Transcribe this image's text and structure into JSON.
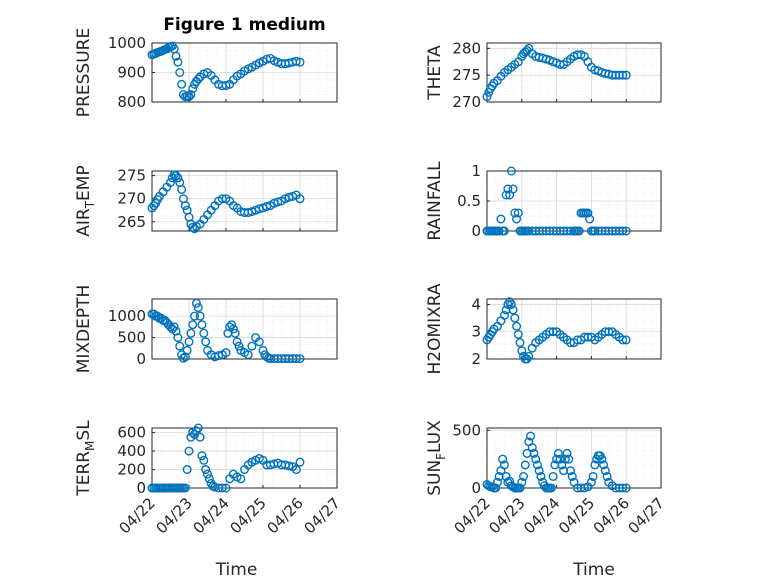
{
  "colors": {
    "marker": "#0072BD",
    "axis": "#262626",
    "grid": "#d9d9d9"
  },
  "title": "Figure 1 medium",
  "chart_data": [
    {
      "type": "scatter",
      "ylabel": "PRESSURE",
      "yticks": [
        800,
        900,
        1000
      ],
      "ylim": [
        800,
        1000
      ],
      "xlim": [
        0,
        5
      ],
      "x": [
        0,
        0.05,
        0.1,
        0.15,
        0.2,
        0.25,
        0.3,
        0.35,
        0.4,
        0.45,
        0.5,
        0.55,
        0.6,
        0.65,
        0.7,
        0.75,
        0.8,
        0.85,
        0.9,
        0.95,
        1.0,
        1.05,
        1.1,
        1.15,
        1.2,
        1.25,
        1.3,
        1.4,
        1.5,
        1.6,
        1.7,
        1.8,
        1.9,
        2.0,
        2.1,
        2.2,
        2.3,
        2.4,
        2.5,
        2.6,
        2.7,
        2.8,
        2.9,
        3.0,
        3.1,
        3.2,
        3.3,
        3.4,
        3.5,
        3.6,
        3.7,
        3.8,
        3.9,
        4.0
      ],
      "y": [
        960,
        962,
        965,
        968,
        970,
        972,
        975,
        978,
        980,
        985,
        988,
        990,
        980,
        955,
        935,
        900,
        860,
        825,
        818,
        820,
        818,
        825,
        845,
        860,
        870,
        878,
        885,
        895,
        900,
        890,
        875,
        860,
        855,
        856,
        860,
        875,
        888,
        895,
        905,
        912,
        918,
        925,
        932,
        938,
        945,
        948,
        940,
        935,
        930,
        930,
        932,
        935,
        938,
        935
      ]
    },
    {
      "type": "scatter",
      "ylabel": "THETA",
      "yticks": [
        270,
        275,
        280
      ],
      "ylim": [
        270,
        281
      ],
      "xlim": [
        0,
        5
      ],
      "x": [
        0,
        0.05,
        0.1,
        0.15,
        0.2,
        0.3,
        0.4,
        0.5,
        0.6,
        0.7,
        0.8,
        0.9,
        1.0,
        1.05,
        1.1,
        1.15,
        1.2,
        1.3,
        1.4,
        1.5,
        1.6,
        1.7,
        1.8,
        1.9,
        2.0,
        2.1,
        2.2,
        2.3,
        2.4,
        2.5,
        2.6,
        2.7,
        2.8,
        2.9,
        3.0,
        3.1,
        3.2,
        3.3,
        3.4,
        3.5,
        3.6,
        3.7,
        3.8,
        3.9,
        4.0
      ],
      "y": [
        271,
        271.8,
        272.5,
        273,
        273.5,
        274,
        274.8,
        275.5,
        276,
        276.5,
        277,
        277.5,
        278.5,
        279,
        279.3,
        279.6,
        280,
        279,
        278.5,
        278.3,
        278.2,
        278,
        277.8,
        277.5,
        277.3,
        277,
        277,
        277.5,
        278,
        278.5,
        278.8,
        278.8,
        278.5,
        277.5,
        276.5,
        276,
        275.8,
        275.5,
        275.3,
        275.2,
        275,
        275,
        275,
        275,
        275
      ]
    },
    {
      "type": "scatter",
      "ylabel": "AIR_TEMP",
      "yticks": [
        265,
        270,
        275
      ],
      "ylim": [
        263,
        276
      ],
      "xlim": [
        0,
        5
      ],
      "x": [
        0,
        0.05,
        0.1,
        0.15,
        0.2,
        0.3,
        0.4,
        0.5,
        0.55,
        0.6,
        0.65,
        0.7,
        0.75,
        0.8,
        0.85,
        0.9,
        0.95,
        1.0,
        1.05,
        1.1,
        1.15,
        1.2,
        1.3,
        1.4,
        1.5,
        1.6,
        1.7,
        1.8,
        1.9,
        2.0,
        2.1,
        2.2,
        2.3,
        2.4,
        2.5,
        2.6,
        2.7,
        2.8,
        2.9,
        3.0,
        3.1,
        3.2,
        3.3,
        3.4,
        3.5,
        3.6,
        3.7,
        3.8,
        3.9,
        4.0
      ],
      "y": [
        268,
        268.5,
        269,
        269.8,
        270.5,
        271.5,
        272.5,
        273.5,
        274.5,
        275.2,
        275,
        274.5,
        273.5,
        272,
        270,
        268.5,
        267.5,
        266,
        264.5,
        263.8,
        263.5,
        264,
        264.5,
        265.5,
        266.5,
        267.5,
        268.5,
        269.5,
        270,
        270,
        269.5,
        268.5,
        268,
        267.2,
        267,
        267,
        267.2,
        267.5,
        267.8,
        268,
        268.3,
        268.5,
        269,
        269.3,
        269.5,
        270,
        270.3,
        270.5,
        270.8,
        270
      ]
    },
    {
      "type": "scatter",
      "ylabel": "RAINFALL",
      "yticks": [
        0,
        0.5,
        1
      ],
      "ylim": [
        0,
        1
      ],
      "xlim": [
        0,
        5
      ],
      "x": [
        0,
        0.05,
        0.1,
        0.15,
        0.2,
        0.25,
        0.3,
        0.35,
        0.4,
        0.45,
        0.5,
        0.55,
        0.6,
        0.65,
        0.7,
        0.75,
        0.8,
        0.85,
        0.9,
        0.95,
        1.0,
        1.05,
        1.1,
        1.15,
        1.2,
        1.3,
        1.4,
        1.5,
        1.6,
        1.7,
        1.8,
        1.9,
        2.0,
        2.1,
        2.2,
        2.3,
        2.4,
        2.5,
        2.55,
        2.6,
        2.65,
        2.7,
        2.75,
        2.8,
        2.85,
        2.9,
        2.95,
        3.0,
        3.05,
        3.1,
        3.2,
        3.3,
        3.4,
        3.5,
        3.6,
        3.7,
        3.8,
        3.9,
        4.0
      ],
      "y": [
        0,
        0,
        0,
        0,
        0,
        0,
        0,
        0,
        0.2,
        0,
        0,
        0.6,
        0.7,
        0.6,
        1.0,
        0.7,
        0.3,
        0.2,
        0.3,
        0,
        0,
        0,
        0,
        0,
        0,
        0,
        0,
        0,
        0,
        0,
        0,
        0,
        0,
        0,
        0,
        0,
        0,
        0,
        0,
        0,
        0,
        0.3,
        0.3,
        0.3,
        0.3,
        0.3,
        0.2,
        0,
        0,
        0,
        0,
        0,
        0,
        0,
        0,
        0,
        0,
        0,
        0
      ]
    },
    {
      "type": "scatter",
      "ylabel": "MIXDEPTH",
      "yticks": [
        0,
        500,
        1000
      ],
      "ylim": [
        0,
        1400
      ],
      "xlim": [
        0,
        5
      ],
      "x": [
        0,
        0.05,
        0.1,
        0.15,
        0.2,
        0.25,
        0.3,
        0.35,
        0.4,
        0.45,
        0.5,
        0.55,
        0.6,
        0.65,
        0.7,
        0.75,
        0.8,
        0.85,
        0.9,
        0.95,
        1.0,
        1.05,
        1.1,
        1.15,
        1.2,
        1.25,
        1.3,
        1.35,
        1.4,
        1.45,
        1.5,
        1.6,
        1.7,
        1.8,
        1.9,
        2.0,
        2.05,
        2.1,
        2.15,
        2.2,
        2.25,
        2.3,
        2.35,
        2.4,
        2.5,
        2.6,
        2.7,
        2.8,
        2.9,
        3.0,
        3.05,
        3.1,
        3.15,
        3.2,
        3.3,
        3.4,
        3.5,
        3.6,
        3.7,
        3.8,
        3.9,
        4.0
      ],
      "y": [
        1050,
        1050,
        1000,
        1000,
        950,
        950,
        900,
        900,
        850,
        800,
        750,
        700,
        750,
        650,
        500,
        300,
        100,
        20,
        50,
        200,
        400,
        600,
        800,
        1000,
        1300,
        1200,
        1000,
        800,
        600,
        400,
        200,
        100,
        50,
        80,
        100,
        150,
        600,
        750,
        800,
        700,
        600,
        400,
        300,
        200,
        150,
        100,
        300,
        500,
        400,
        200,
        100,
        50,
        20,
        10,
        10,
        10,
        10,
        10,
        10,
        10,
        10,
        10
      ]
    },
    {
      "type": "scatter",
      "ylabel": "H2OMIXRA",
      "yticks": [
        2,
        3,
        4
      ],
      "ylim": [
        2,
        4.2
      ],
      "xlim": [
        0,
        5
      ],
      "x": [
        0,
        0.05,
        0.1,
        0.15,
        0.2,
        0.3,
        0.4,
        0.5,
        0.55,
        0.6,
        0.65,
        0.7,
        0.75,
        0.8,
        0.85,
        0.9,
        0.95,
        1.0,
        1.05,
        1.1,
        1.15,
        1.2,
        1.3,
        1.4,
        1.5,
        1.6,
        1.7,
        1.8,
        1.9,
        2.0,
        2.1,
        2.2,
        2.3,
        2.4,
        2.5,
        2.6,
        2.7,
        2.8,
        2.9,
        3.0,
        3.1,
        3.2,
        3.3,
        3.4,
        3.5,
        3.6,
        3.7,
        3.8,
        3.9,
        4.0
      ],
      "y": [
        2.7,
        2.8,
        2.9,
        3.0,
        3.1,
        3.2,
        3.4,
        3.6,
        3.8,
        4.0,
        4.1,
        4.0,
        3.8,
        3.5,
        3.2,
        2.9,
        2.6,
        2.3,
        2.1,
        2.0,
        2.0,
        2.1,
        2.4,
        2.6,
        2.7,
        2.8,
        2.9,
        3.0,
        3.0,
        3.0,
        2.9,
        2.8,
        2.7,
        2.6,
        2.6,
        2.7,
        2.7,
        2.8,
        2.8,
        2.8,
        2.7,
        2.8,
        2.9,
        3.0,
        3.0,
        3.0,
        2.9,
        2.8,
        2.7,
        2.7
      ]
    },
    {
      "type": "scatter",
      "ylabel": "TERR_MSL",
      "yticks": [
        0,
        200,
        400,
        600
      ],
      "ylim": [
        0,
        650
      ],
      "xlim": [
        0,
        5
      ],
      "x": [
        0,
        0.05,
        0.1,
        0.15,
        0.2,
        0.25,
        0.3,
        0.35,
        0.4,
        0.45,
        0.5,
        0.55,
        0.6,
        0.65,
        0.7,
        0.75,
        0.8,
        0.85,
        0.9,
        0.95,
        1.0,
        1.05,
        1.1,
        1.15,
        1.2,
        1.25,
        1.3,
        1.35,
        1.4,
        1.45,
        1.5,
        1.55,
        1.6,
        1.65,
        1.7,
        1.8,
        1.9,
        2.0,
        2.1,
        2.2,
        2.3,
        2.4,
        2.5,
        2.6,
        2.7,
        2.8,
        2.9,
        3.0,
        3.1,
        3.2,
        3.3,
        3.4,
        3.5,
        3.6,
        3.7,
        3.8,
        3.9,
        4.0
      ],
      "y": [
        0,
        0,
        0,
        0,
        0,
        0,
        0,
        0,
        0,
        0,
        0,
        0,
        0,
        0,
        0,
        0,
        0,
        0,
        0,
        200,
        400,
        550,
        600,
        580,
        620,
        650,
        550,
        350,
        300,
        200,
        150,
        100,
        50,
        20,
        10,
        0,
        0,
        0,
        100,
        150,
        120,
        100,
        200,
        250,
        280,
        300,
        320,
        300,
        250,
        250,
        260,
        270,
        250,
        250,
        240,
        230,
        200,
        280
      ]
    },
    {
      "type": "scatter",
      "ylabel": "SUN_FLUX",
      "yticks": [
        0,
        500
      ],
      "ylim": [
        0,
        520
      ],
      "xlim": [
        0,
        5
      ],
      "x": [
        0,
        0.05,
        0.1,
        0.15,
        0.2,
        0.25,
        0.3,
        0.35,
        0.4,
        0.45,
        0.5,
        0.55,
        0.6,
        0.65,
        0.7,
        0.75,
        0.8,
        0.85,
        0.9,
        0.95,
        1.0,
        1.05,
        1.1,
        1.15,
        1.2,
        1.25,
        1.3,
        1.35,
        1.4,
        1.45,
        1.5,
        1.55,
        1.6,
        1.65,
        1.7,
        1.75,
        1.8,
        1.85,
        1.9,
        1.95,
        2.0,
        2.05,
        2.1,
        2.15,
        2.2,
        2.25,
        2.3,
        2.35,
        2.4,
        2.45,
        2.5,
        2.6,
        2.7,
        2.8,
        2.9,
        3.0,
        3.05,
        3.1,
        3.15,
        3.2,
        3.25,
        3.3,
        3.35,
        3.4,
        3.45,
        3.5,
        3.6,
        3.7,
        3.8,
        3.9,
        4.0
      ],
      "y": [
        30,
        20,
        10,
        10,
        0,
        0,
        50,
        100,
        150,
        250,
        200,
        100,
        50,
        60,
        20,
        10,
        0,
        0,
        0,
        0,
        50,
        100,
        200,
        300,
        400,
        450,
        350,
        300,
        250,
        200,
        150,
        100,
        50,
        20,
        0,
        0,
        0,
        0,
        100,
        200,
        250,
        300,
        250,
        200,
        150,
        250,
        300,
        250,
        150,
        100,
        50,
        0,
        0,
        0,
        10,
        50,
        100,
        200,
        250,
        280,
        280,
        250,
        200,
        150,
        100,
        50,
        20,
        0,
        0,
        0,
        0
      ]
    }
  ],
  "xticks": [
    "04/22",
    "04/23",
    "04/24",
    "04/25",
    "04/26",
    "04/27"
  ],
  "xlabel": "Time"
}
